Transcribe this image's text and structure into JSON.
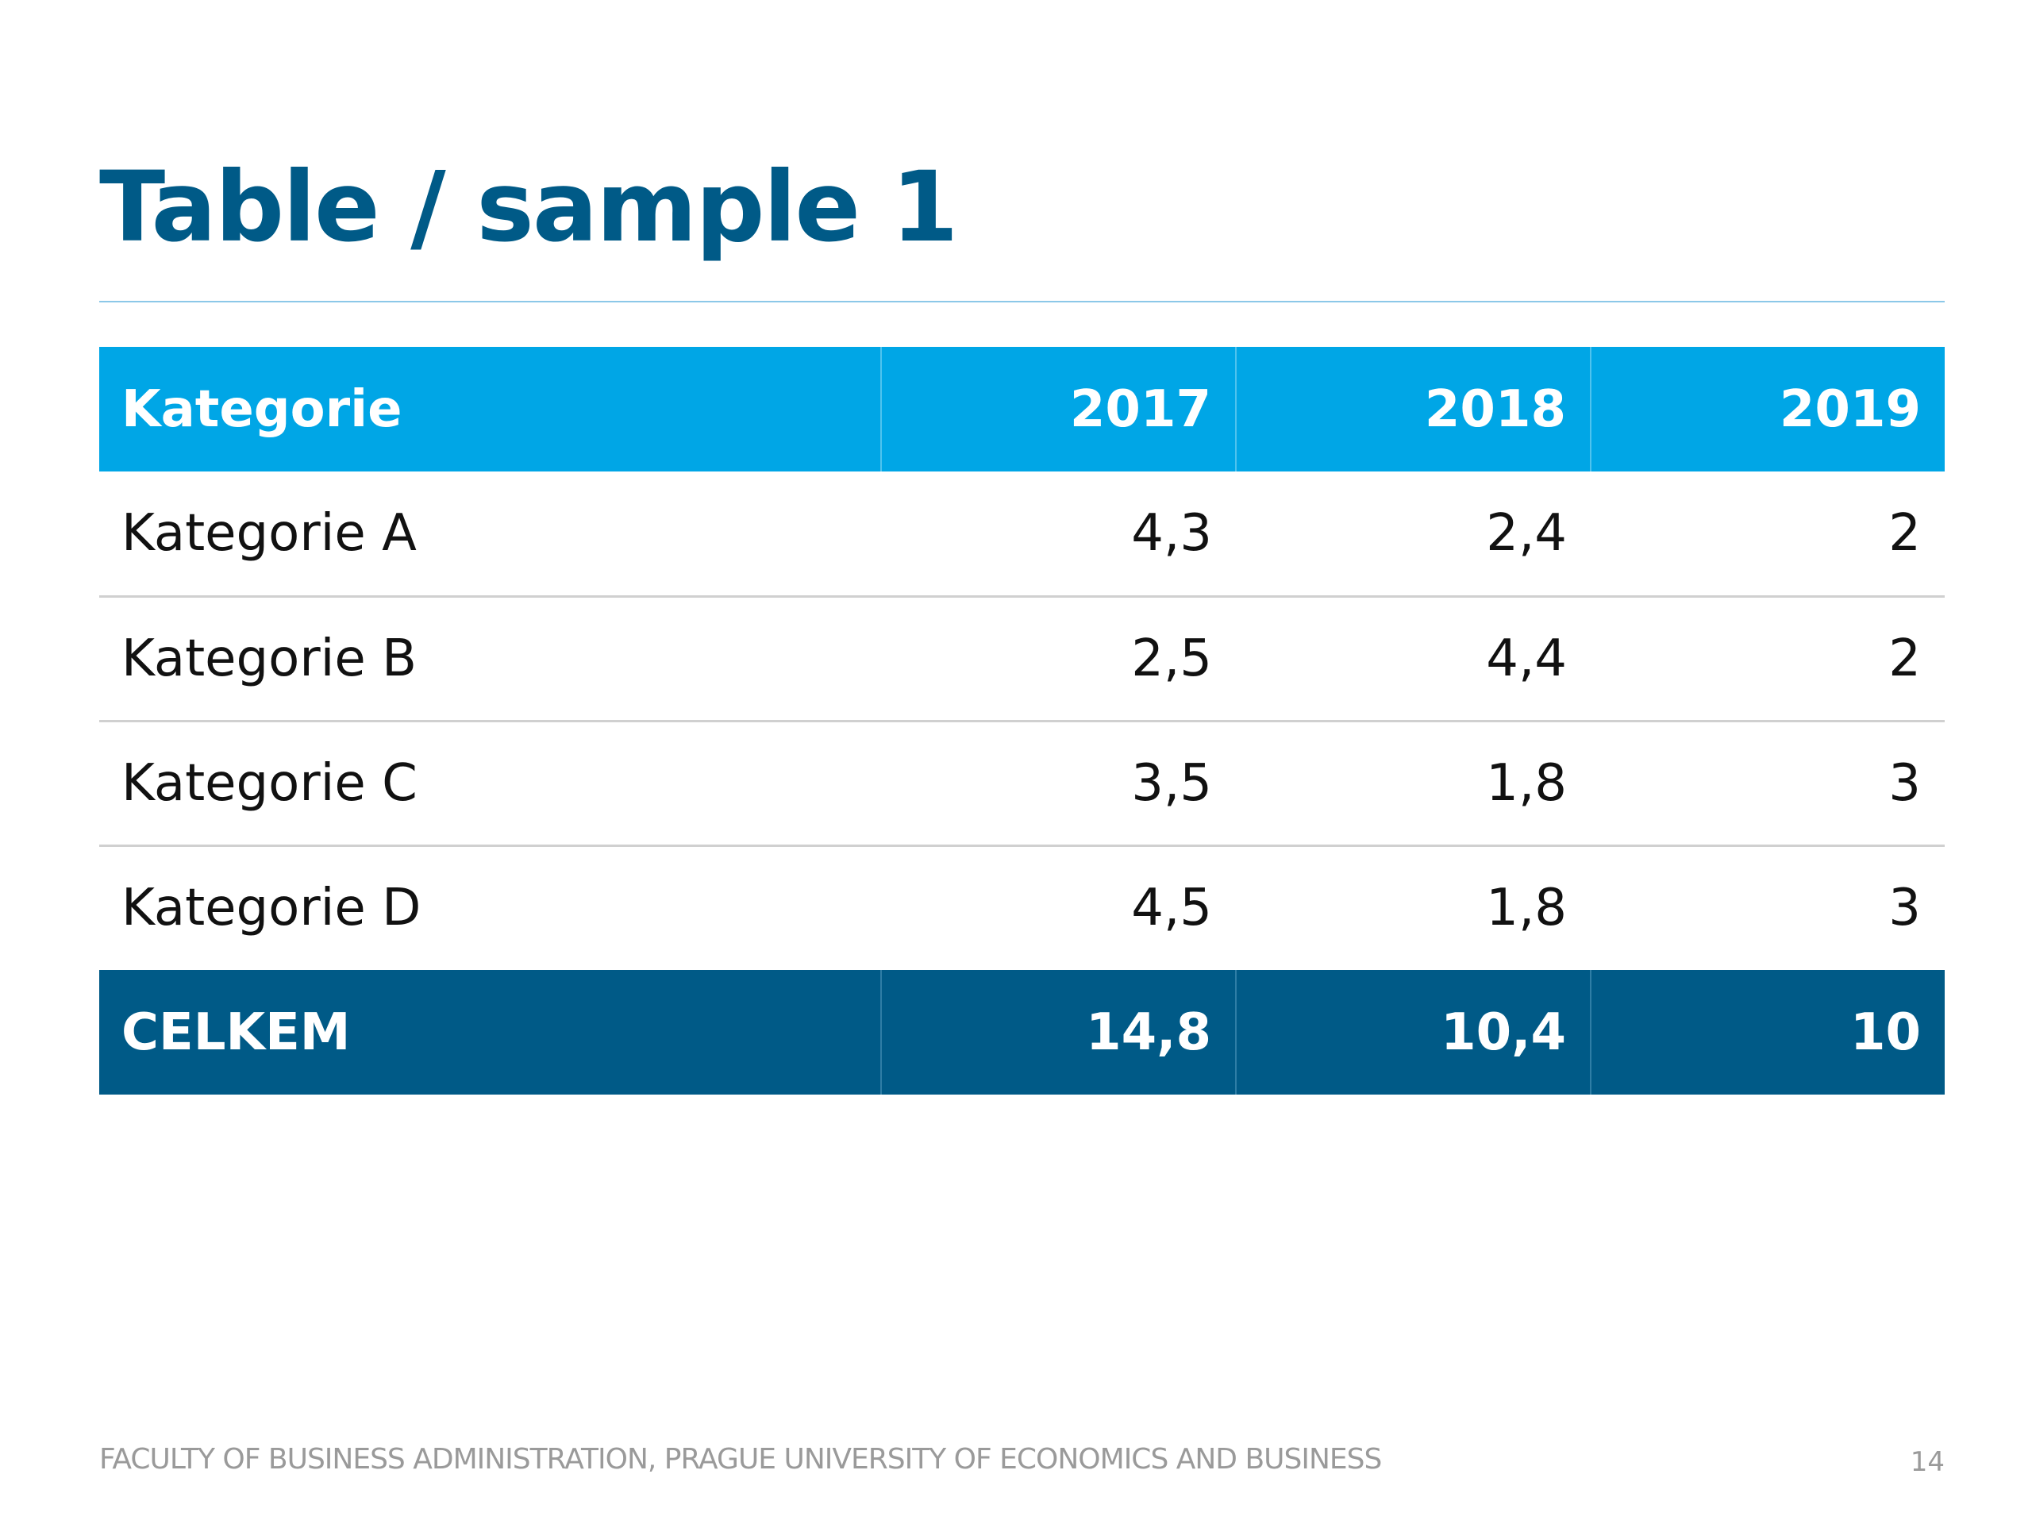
{
  "slide": {
    "title": "Table / sample 1",
    "footer": "FACULTY OF BUSINESS ADMINISTRATION, PRAGUE UNIVERSITY OF ECONOMICS AND BUSINESS",
    "page_number": "14"
  },
  "colors": {
    "title": "#005a87",
    "header_bg": "#00a6e6",
    "total_bg": "#005a87",
    "rule": "#8cc8e8",
    "footer_text": "#9a9a9a"
  },
  "table": {
    "headers": [
      "Kategorie",
      "2017",
      "2018",
      "2019"
    ],
    "rows": [
      [
        "Kategorie A",
        "4,3",
        "2,4",
        "2"
      ],
      [
        "Kategorie B",
        "2,5",
        "4,4",
        "2"
      ],
      [
        "Kategorie C",
        "3,5",
        "1,8",
        "3"
      ],
      [
        "Kategorie D",
        "4,5",
        "1,8",
        "3"
      ]
    ],
    "total": [
      "CELKEM",
      "14,8",
      "10,4",
      "10"
    ]
  }
}
